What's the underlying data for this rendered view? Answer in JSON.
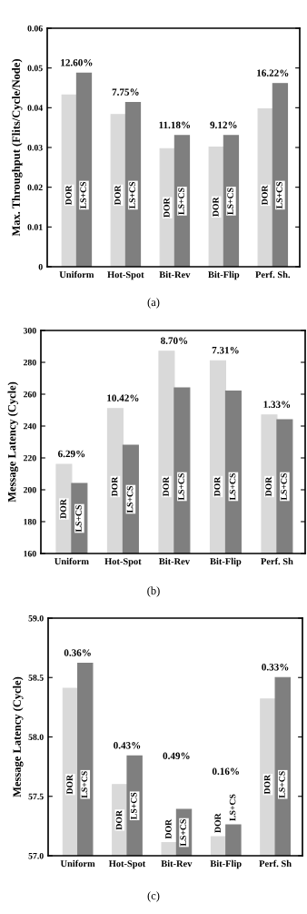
{
  "chart_data": [
    {
      "type": "bar",
      "ylabel": "Max. Throughput (Flits/Cycle/Node)",
      "categories": [
        "Uniform",
        "Hot-Spot",
        "Bit-Rev",
        "Bit-Flip",
        "Perf. Sh."
      ],
      "series": [
        {
          "name": "DOR",
          "color": "#d9d9d9",
          "values": [
            0.0432,
            0.0383,
            0.0297,
            0.0301,
            0.0397
          ]
        },
        {
          "name": "LS+CS",
          "color": "#7f7f7f",
          "values": [
            0.0487,
            0.0413,
            0.033,
            0.033,
            0.0461
          ]
        }
      ],
      "ylim": [
        0,
        0.06
      ],
      "yticks": [
        0,
        0.01,
        0.02,
        0.03,
        0.04,
        0.05,
        0.06
      ],
      "annotations": [
        {
          "text": "12.60%",
          "x": "Uniform",
          "y": 0.0487
        },
        {
          "text": "7.75%",
          "x": "Hot-Spot",
          "y": 0.0413
        },
        {
          "text": "11.18%",
          "x": "Bit-Rev",
          "y": 0.033
        },
        {
          "text": "9.12%",
          "x": "Bit-Flip",
          "y": 0.033
        },
        {
          "text": "16.22%",
          "x": "Perf. Sh.",
          "y": 0.0461
        },
        "(a)"
      ]
    },
    {
      "type": "bar",
      "ylabel": "Message Latency (Cycle)",
      "categories": [
        "Uniform",
        "Hot-Spot",
        "Bit-Rev",
        "Bit-Flip",
        "Perf. Sh"
      ],
      "series": [
        {
          "name": "DOR",
          "color": "#d9d9d9",
          "values": [
            216,
            251,
            287,
            281,
            247
          ]
        },
        {
          "name": "LS+CS",
          "color": "#7f7f7f",
          "values": [
            204,
            228,
            264,
            262,
            244
          ]
        }
      ],
      "ylim": [
        160,
        300
      ],
      "yticks": [
        160,
        180,
        200,
        220,
        240,
        260,
        280,
        300
      ],
      "annotations": [
        {
          "text": "6.29%",
          "x": "Uniform",
          "y": 216
        },
        {
          "text": "10.42%",
          "x": "Hot-Spot",
          "y": 251
        },
        {
          "text": "8.70%",
          "x": "Bit-Rev",
          "y": 287
        },
        {
          "text": "7.31%",
          "x": "Bit-Flip",
          "y": 281
        },
        {
          "text": "1.33%",
          "x": "Perf. Sh",
          "y": 247
        },
        "(b)"
      ]
    },
    {
      "type": "bar",
      "ylabel": "Message Latency (Cycle)",
      "categories": [
        "Uniform",
        "Hot-Spot",
        "Bit-Rev",
        "Bit-Flip",
        "Perf. Sh"
      ],
      "series": [
        {
          "name": "DOR",
          "color": "#d9d9d9",
          "values": [
            58.41,
            57.6,
            57.11,
            57.16,
            58.32
          ]
        },
        {
          "name": "LS+CS",
          "color": "#7f7f7f",
          "values": [
            58.62,
            57.84,
            57.39,
            57.26,
            58.5
          ]
        }
      ],
      "ylim": [
        57.0,
        59.0
      ],
      "yticks": [
        {
          "value": 57.0,
          "label": "57.0"
        },
        {
          "value": 57.5,
          "label": "57.5"
        },
        {
          "value": 58.0,
          "label": "58.0"
        },
        {
          "value": 58.5,
          "label": "58.5"
        },
        {
          "value": 59.0,
          "label": "59.0"
        }
      ],
      "annotations": [
        {
          "text": "0.36%",
          "x": "Uniform",
          "y": 58.62
        },
        {
          "text": "0.43%",
          "x": "Hot-Spot",
          "y": 57.84
        },
        "0.49%",
        "0.16%",
        {
          "text": "0.33%",
          "x": "Perf. Sh",
          "y": 58.5
        },
        "(c)"
      ]
    }
  ]
}
